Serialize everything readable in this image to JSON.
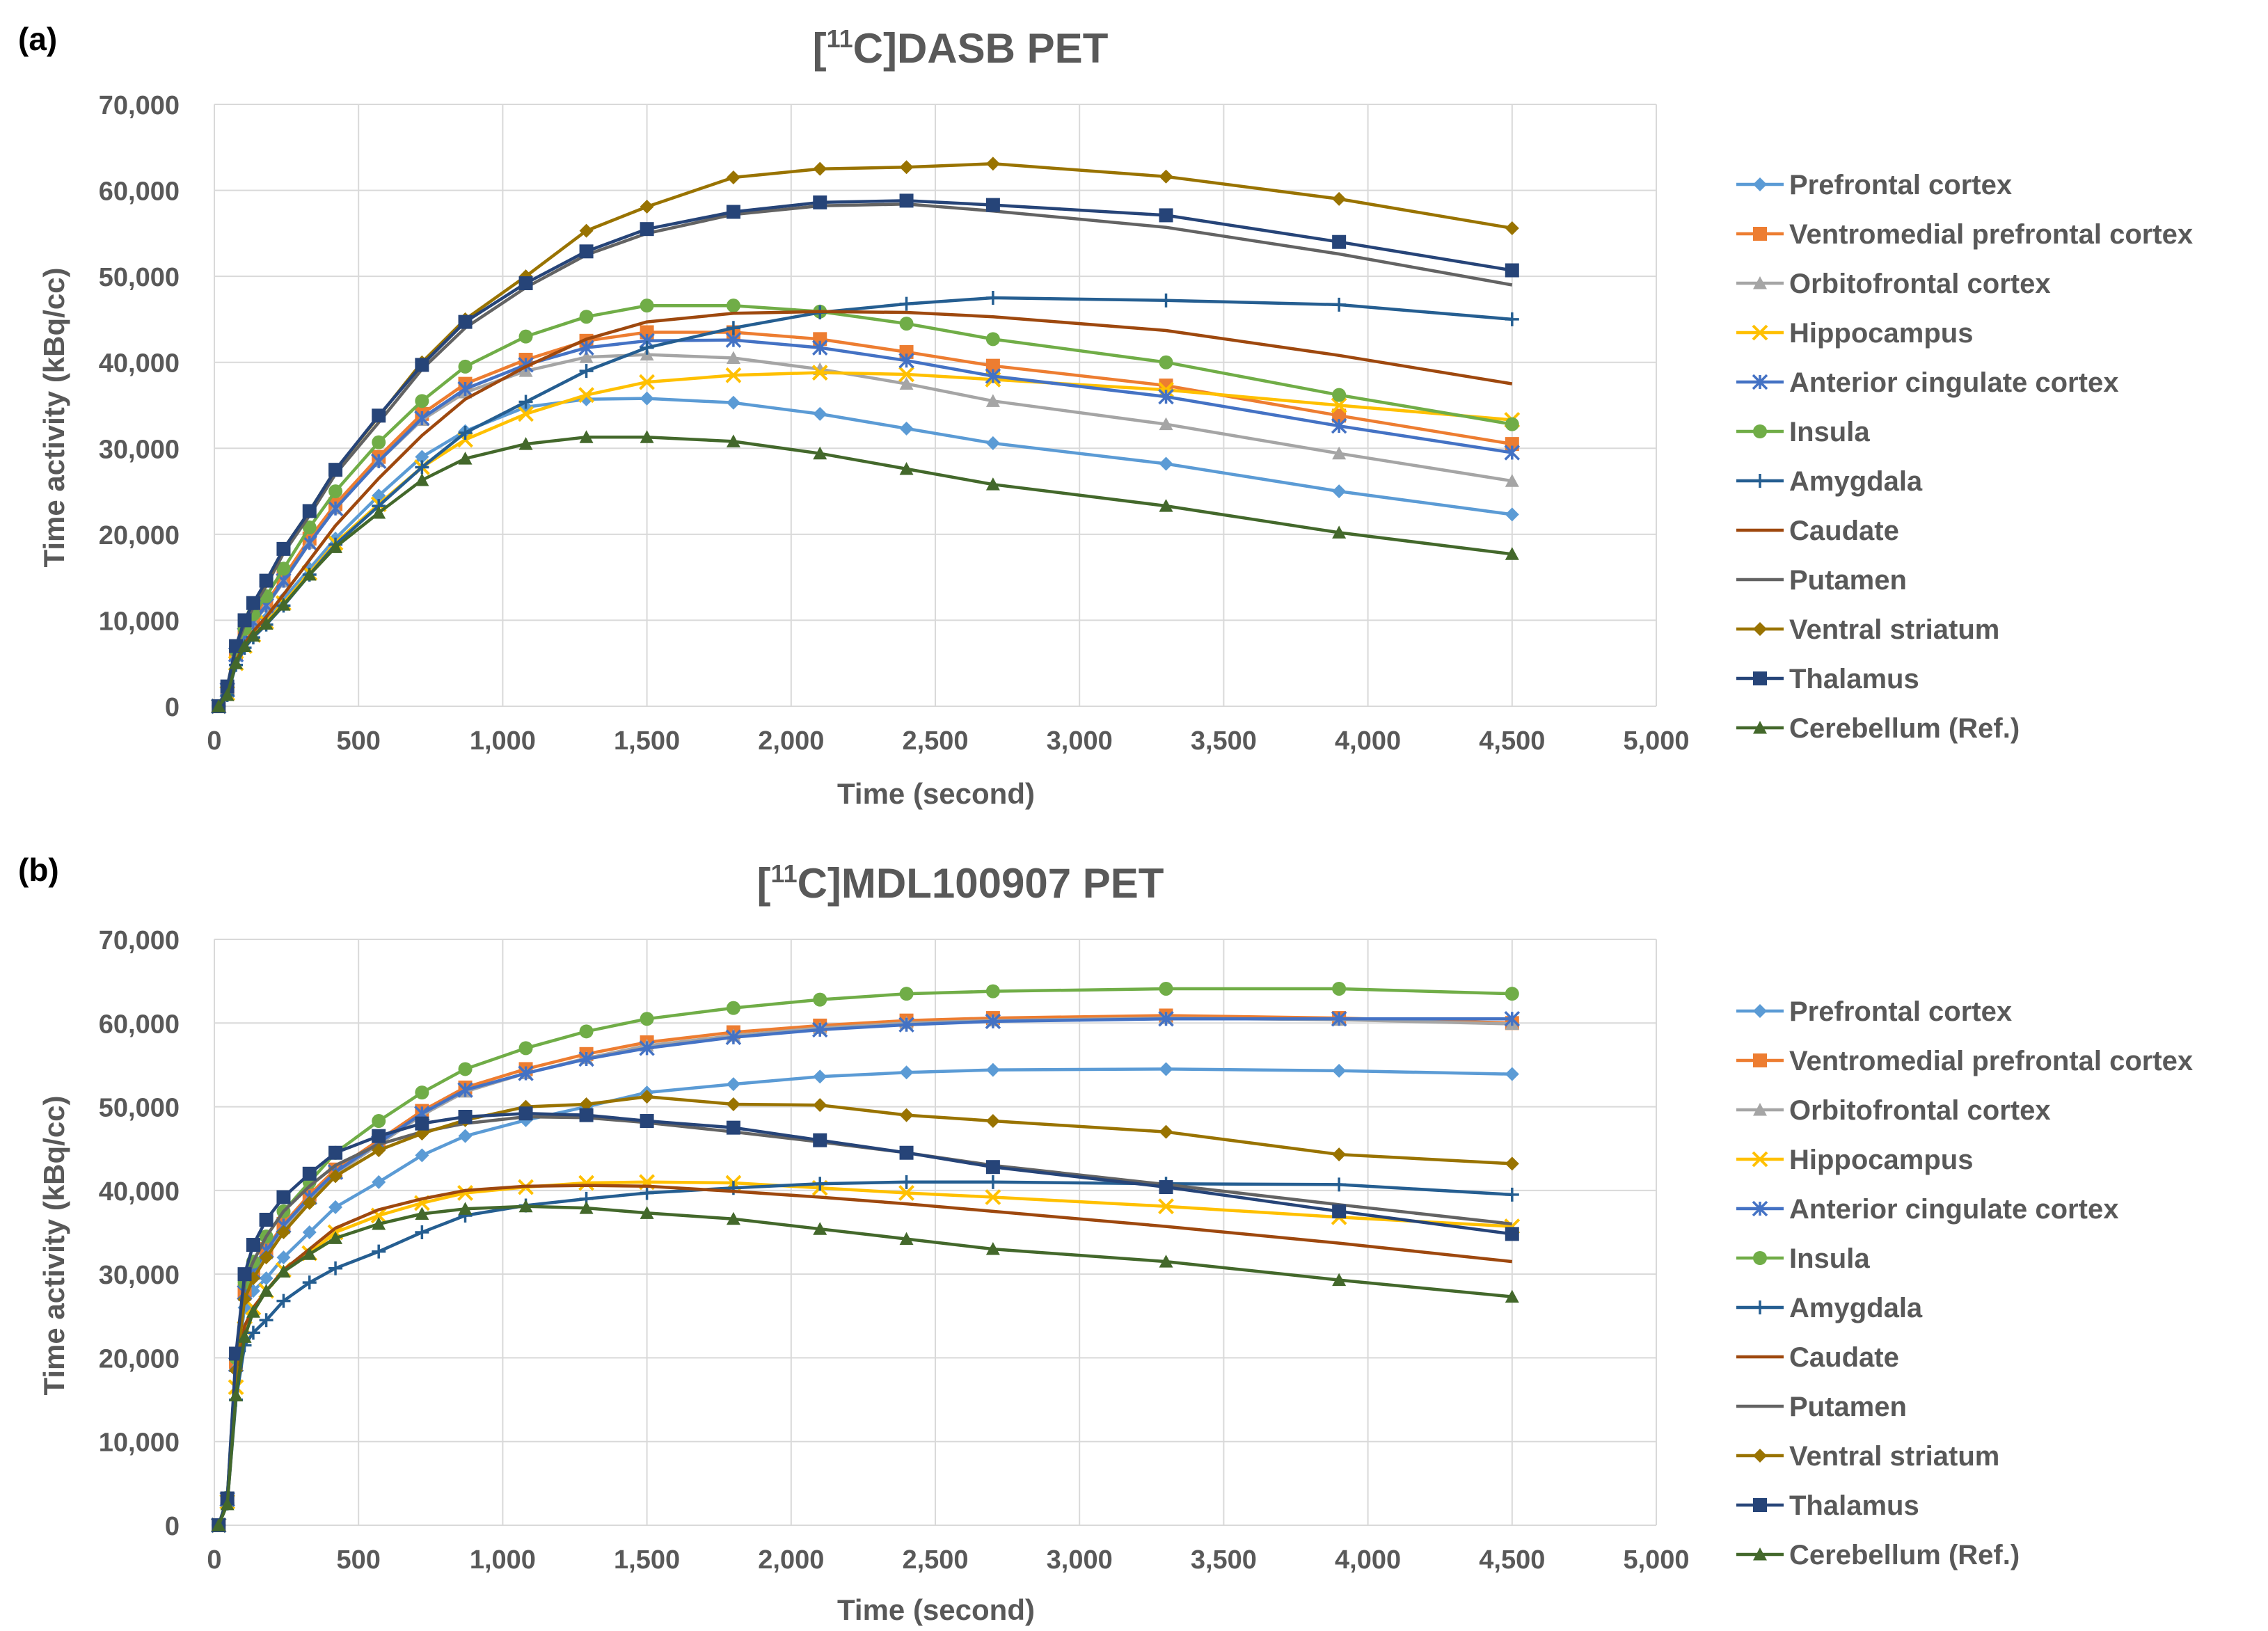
{
  "chart_data": [
    {
      "panel": "(a)",
      "type": "line",
      "title_prefix": "[",
      "title_sup": "11",
      "title_main": "C]DASB PET",
      "xlabel": "Time (second)",
      "ylabel": "Time activity (kBq/cc)",
      "xlim": [
        0,
        5000
      ],
      "ylim": [
        0,
        70000
      ],
      "xticks": [
        0,
        500,
        1000,
        1500,
        2000,
        2500,
        3000,
        3500,
        4000,
        4500,
        5000
      ],
      "xtick_labels": [
        "0",
        "500",
        "1,000",
        "1,500",
        "2,000",
        "2,500",
        "3,000",
        "3,500",
        "4,000",
        "4,500",
        "5,000"
      ],
      "yticks": [
        0,
        10000,
        20000,
        30000,
        40000,
        50000,
        60000,
        70000
      ],
      "ytick_labels": [
        "0",
        "10,000",
        "20,000",
        "30,000",
        "40,000",
        "50,000",
        "60,000",
        "70,000"
      ],
      "grid": true,
      "legend_position": "right",
      "x": [
        15,
        45,
        75,
        105,
        135,
        180,
        240,
        330,
        420,
        570,
        720,
        870,
        1080,
        1290,
        1500,
        1800,
        2100,
        2400,
        2700,
        3300,
        3900,
        4500
      ],
      "series": [
        {
          "name": "Prefrontal cortex",
          "color": "#5B9BD5",
          "marker": "diamond",
          "values": [
            0,
            1800,
            5500,
            7500,
            8800,
            10200,
            12500,
            16000,
            19500,
            24500,
            29000,
            32000,
            34800,
            35700,
            35800,
            35300,
            34000,
            32300,
            30600,
            28200,
            25000,
            22300
          ]
        },
        {
          "name": "Ventromedial prefrontal cortex",
          "color": "#ED7D31",
          "marker": "square",
          "values": [
            0,
            2000,
            6200,
            8500,
            10000,
            12000,
            15000,
            19500,
            23500,
            29000,
            34000,
            37500,
            40300,
            42500,
            43500,
            43500,
            42700,
            41200,
            39600,
            37300,
            33800,
            30500
          ]
        },
        {
          "name": "Orbitofrontal cortex",
          "color": "#A5A5A5",
          "marker": "triangle",
          "values": [
            0,
            1900,
            6000,
            8200,
            9700,
            11600,
            14500,
            19000,
            23000,
            28500,
            33300,
            36500,
            39000,
            40600,
            40900,
            40500,
            39200,
            37500,
            35500,
            32800,
            29400,
            26200
          ]
        },
        {
          "name": "Hippocampus",
          "color": "#FFC000",
          "marker": "x",
          "values": [
            0,
            1500,
            5000,
            7000,
            8300,
            9800,
            12000,
            15500,
            19000,
            23500,
            27800,
            31000,
            34000,
            36200,
            37700,
            38500,
            38800,
            38600,
            38000,
            36800,
            35000,
            33300
          ]
        },
        {
          "name": "Anterior cingulate cortex",
          "color": "#4472C4",
          "marker": "asterisk",
          "values": [
            0,
            1900,
            6000,
            8300,
            9800,
            11700,
            14600,
            19000,
            23000,
            28500,
            33500,
            36900,
            39700,
            41700,
            42500,
            42600,
            41700,
            40200,
            38400,
            36000,
            32600,
            29500
          ]
        },
        {
          "name": "Insula",
          "color": "#70AD47",
          "marker": "circle",
          "values": [
            0,
            2100,
            6500,
            9000,
            10700,
            12800,
            16000,
            20800,
            25000,
            30700,
            35500,
            39500,
            43000,
            45300,
            46600,
            46600,
            45900,
            44500,
            42700,
            40000,
            36200,
            32800
          ]
        },
        {
          "name": "Amygdala",
          "color": "#255E91",
          "marker": "plus",
          "values": [
            0,
            1300,
            4800,
            6800,
            8000,
            9500,
            11700,
            15300,
            18800,
            23300,
            27800,
            31800,
            35400,
            39000,
            41700,
            44000,
            45800,
            46800,
            47500,
            47200,
            46700,
            45000
          ]
        },
        {
          "name": "Caudate",
          "color": "#9E480E",
          "marker": "none",
          "values": [
            0,
            1600,
            5200,
            7300,
            8700,
            10400,
            13000,
            17000,
            21000,
            26500,
            31500,
            35700,
            39500,
            42700,
            44700,
            45700,
            45900,
            45800,
            45300,
            43700,
            40800,
            37500
          ]
        },
        {
          "name": "Putamen",
          "color": "#636363",
          "marker": "none",
          "values": [
            0,
            2200,
            6800,
            9500,
            11500,
            14000,
            17800,
            22200,
            27000,
            33000,
            39200,
            44000,
            48700,
            52500,
            55000,
            57200,
            58200,
            58400,
            57600,
            55700,
            52600,
            49000
          ]
        },
        {
          "name": "Ventral striatum",
          "color": "#997300",
          "marker": "diamond",
          "values": [
            0,
            2300,
            7000,
            10000,
            12000,
            14500,
            18300,
            22700,
            27500,
            33700,
            40000,
            45000,
            50000,
            55300,
            58100,
            61500,
            62500,
            62700,
            63100,
            61600,
            59000,
            55600
          ]
        },
        {
          "name": "Thalamus",
          "color": "#264478",
          "marker": "square",
          "values": [
            0,
            2300,
            7000,
            10000,
            12000,
            14600,
            18300,
            22700,
            27500,
            33800,
            39700,
            44700,
            49200,
            52900,
            55500,
            57500,
            58600,
            58800,
            58300,
            57100,
            54000,
            50700
          ]
        },
        {
          "name": "Cerebellum (Ref.)",
          "color": "#43682B",
          "marker": "triangle",
          "values": [
            0,
            1300,
            5000,
            7000,
            8200,
            9600,
            11800,
            15300,
            18500,
            22500,
            26300,
            28800,
            30500,
            31300,
            31300,
            30800,
            29400,
            27600,
            25800,
            23300,
            20200,
            17700
          ]
        }
      ]
    },
    {
      "panel": "(b)",
      "type": "line",
      "title_prefix": "[",
      "title_sup": "11",
      "title_main": "C]MDL100907 PET",
      "xlabel": "Time (second)",
      "ylabel": "Time activity (kBq/cc)",
      "xlim": [
        0,
        5000
      ],
      "ylim": [
        0,
        70000
      ],
      "xticks": [
        0,
        500,
        1000,
        1500,
        2000,
        2500,
        3000,
        3500,
        4000,
        4500,
        5000
      ],
      "xtick_labels": [
        "0",
        "500",
        "1,000",
        "1,500",
        "2,000",
        "2,500",
        "3,000",
        "3,500",
        "4,000",
        "4,500",
        "5,000"
      ],
      "yticks": [
        0,
        10000,
        20000,
        30000,
        40000,
        50000,
        60000,
        70000
      ],
      "ytick_labels": [
        "0",
        "10,000",
        "20,000",
        "30,000",
        "40,000",
        "50,000",
        "60,000",
        "70,000"
      ],
      "grid": true,
      "legend_position": "right",
      "x": [
        15,
        45,
        75,
        105,
        135,
        180,
        240,
        330,
        420,
        570,
        720,
        870,
        1080,
        1290,
        1500,
        1800,
        2100,
        2400,
        2700,
        3300,
        3900,
        4500
      ],
      "series": [
        {
          "name": "Prefrontal cortex",
          "color": "#5B9BD5",
          "marker": "diamond",
          "values": [
            0,
            3000,
            18500,
            26000,
            28000,
            29500,
            32000,
            35000,
            38000,
            41000,
            44200,
            46500,
            48400,
            50000,
            51700,
            52700,
            53600,
            54100,
            54400,
            54500,
            54300,
            53900
          ]
        },
        {
          "name": "Ventromedial prefrontal cortex",
          "color": "#ED7D31",
          "marker": "square",
          "values": [
            0,
            3200,
            19500,
            28000,
            30500,
            33000,
            36000,
            39500,
            42500,
            46000,
            49500,
            52300,
            54500,
            56300,
            57700,
            58900,
            59700,
            60300,
            60600,
            60900,
            60600,
            60000
          ]
        },
        {
          "name": "Orbitofrontal cortex",
          "color": "#A5A5A5",
          "marker": "triangle",
          "values": [
            0,
            3100,
            19000,
            27500,
            30000,
            32500,
            35500,
            39000,
            42000,
            45500,
            49000,
            51800,
            54000,
            55800,
            57300,
            58500,
            59400,
            60000,
            60300,
            60600,
            60400,
            59900
          ]
        },
        {
          "name": "Hippocampus",
          "color": "#FFC000",
          "marker": "x",
          "values": [
            0,
            2800,
            16500,
            23500,
            26000,
            28000,
            30500,
            32500,
            35000,
            37000,
            38500,
            39700,
            40400,
            40900,
            41000,
            40900,
            40300,
            39700,
            39200,
            38100,
            36800,
            35700
          ]
        },
        {
          "name": "Anterior cingulate cortex",
          "color": "#4472C4",
          "marker": "asterisk",
          "values": [
            0,
            3100,
            19200,
            27800,
            30300,
            32800,
            35800,
            39200,
            42200,
            45700,
            49200,
            52000,
            54000,
            55700,
            57000,
            58300,
            59200,
            59800,
            60200,
            60500,
            60500,
            60500
          ]
        },
        {
          "name": "Insula",
          "color": "#70AD47",
          "marker": "circle",
          "values": [
            0,
            3300,
            20000,
            29000,
            31500,
            34500,
            37500,
            41000,
            44500,
            48300,
            51700,
            54500,
            57000,
            59000,
            60500,
            61800,
            62800,
            63500,
            63800,
            64100,
            64100,
            63500
          ]
        },
        {
          "name": "Amygdala",
          "color": "#255E91",
          "marker": "plus",
          "values": [
            0,
            2600,
            15000,
            21500,
            23000,
            24500,
            26800,
            29000,
            30700,
            32700,
            35000,
            37000,
            38200,
            39000,
            39700,
            40300,
            40800,
            41000,
            41000,
            40800,
            40700,
            39500
          ]
        },
        {
          "name": "Caudate",
          "color": "#9E480E",
          "marker": "none",
          "values": [
            0,
            2800,
            16500,
            23800,
            26000,
            28000,
            30500,
            33000,
            35500,
            37700,
            39000,
            40000,
            40500,
            40600,
            40500,
            39900,
            39200,
            38400,
            37500,
            35700,
            33700,
            31500
          ]
        },
        {
          "name": "Putamen",
          "color": "#636363",
          "marker": "none",
          "values": [
            0,
            3000,
            19500,
            29000,
            31500,
            34500,
            37500,
            40500,
            43000,
            45500,
            47000,
            48000,
            48800,
            48700,
            48100,
            47000,
            45800,
            44500,
            43000,
            40700,
            38300,
            36000
          ]
        },
        {
          "name": "Ventral striatum",
          "color": "#997300",
          "marker": "diamond",
          "values": [
            0,
            3000,
            18500,
            27000,
            29500,
            32000,
            35000,
            38500,
            41700,
            44800,
            46800,
            48400,
            50000,
            50300,
            51200,
            50300,
            50200,
            49000,
            48300,
            47000,
            44300,
            43200
          ]
        },
        {
          "name": "Thalamus",
          "color": "#264478",
          "marker": "square",
          "values": [
            0,
            3200,
            20500,
            30000,
            33500,
            36500,
            39200,
            42000,
            44500,
            46500,
            48000,
            48800,
            49200,
            49000,
            48300,
            47500,
            46000,
            44500,
            42800,
            40400,
            37500,
            34800
          ]
        },
        {
          "name": "Cerebellum (Ref.)",
          "color": "#43682B",
          "marker": "triangle",
          "values": [
            0,
            2500,
            15500,
            22500,
            25500,
            28000,
            30300,
            32400,
            34300,
            36000,
            37200,
            37800,
            38100,
            37900,
            37300,
            36600,
            35400,
            34200,
            33000,
            31500,
            29300,
            27300
          ]
        }
      ]
    }
  ]
}
